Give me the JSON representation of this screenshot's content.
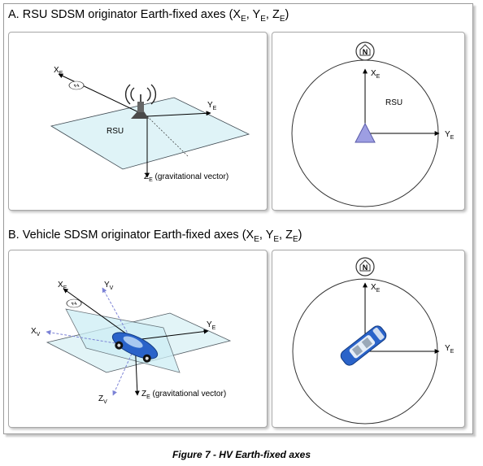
{
  "section_a": {
    "title_prefix": "A. RSU SDSM originator Earth-fixed axes (",
    "x_letter": "X",
    "y_letter": "Y",
    "z_letter": "Z",
    "sub_e": "E",
    "sep": ", ",
    "title_suffix": ")",
    "rsu_label": "RSU",
    "gravity_label": " (gravitational vector)",
    "north_label": "N"
  },
  "section_b": {
    "title_prefix": "B. Vehicle SDSM originator Earth-fixed axes (",
    "x_letter": "X",
    "y_letter": "Y",
    "z_letter": "Z",
    "sub_e": "E",
    "sub_v": "V",
    "sep": ", ",
    "title_suffix": ")",
    "gravity_label": " (gravitational vector)",
    "north_label": "N"
  },
  "colors": {
    "plane_fill": "#dff3f7",
    "plane_stroke": "#3f4a52",
    "rsu_triangle": "#9d9ee2",
    "vehicle_axis": "#7b82d6",
    "vehicle_body": "#2a63c9"
  },
  "icons": [
    "north-compass-icon",
    "rsu-antenna-icon",
    "vehicle-icon"
  ],
  "caption": "Figure 7 - HV Earth-fixed axes"
}
